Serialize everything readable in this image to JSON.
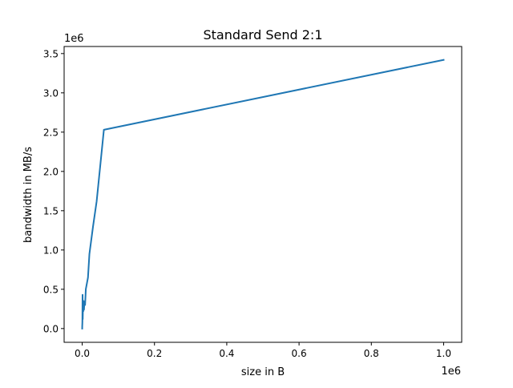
{
  "chart_data": {
    "type": "line",
    "title": "Standard Send 2:1",
    "xlabel": "size in B",
    "ylabel": "bandwidth in MB/s",
    "x_offset_label": "1e6",
    "y_offset_label": "1e6",
    "x_tick_labels": [
      "0.0",
      "0.2",
      "0.4",
      "0.6",
      "0.8",
      "1.0"
    ],
    "y_tick_labels": [
      "0.0",
      "0.5",
      "1.0",
      "1.5",
      "2.0",
      "2.5",
      "3.0",
      "3.5"
    ],
    "x_ticks": [
      0,
      200000,
      400000,
      600000,
      800000,
      1000000
    ],
    "y_ticks": [
      0,
      500000,
      1000000,
      1500000,
      2000000,
      2500000,
      3000000,
      3500000
    ],
    "xlim": [
      -50000,
      1050000
    ],
    "ylim": [
      -175000,
      3590000
    ],
    "grid": false,
    "series": [
      {
        "color": "#1f77b4",
        "x": [
          1,
          100,
          500,
          1000,
          1500,
          2000,
          3000,
          4000,
          5000,
          6000,
          8000,
          10000,
          12000,
          16000,
          20000,
          30000,
          40000,
          60000,
          1000000
        ],
        "y": [
          0,
          30000,
          80000,
          430000,
          120000,
          250000,
          220000,
          350000,
          240000,
          330000,
          300000,
          500000,
          550000,
          650000,
          950000,
          1300000,
          1620000,
          2530000,
          3420000
        ]
      }
    ]
  }
}
